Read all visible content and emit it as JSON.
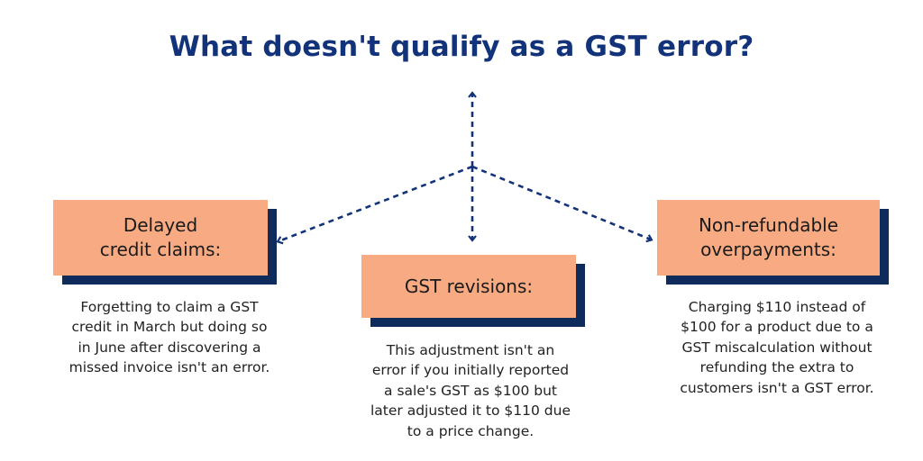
{
  "title": "What doesn't qualify as a GST error?",
  "colors": {
    "title": "#12337a",
    "card": "#f8ab82",
    "card_shadow": "#0f2b5c",
    "arrow": "#12337a"
  },
  "items": [
    {
      "heading": "Delayed\ncredit claims:",
      "description": "Forgetting to claim a GST\ncredit in March but doing so\nin June after discovering a\nmissed invoice isn't an error."
    },
    {
      "heading": "GST revisions:",
      "description": "This adjustment isn't an\nerror if you initially reported\na sale's GST as $100 but\nlater adjusted it to $110 due\nto a price change."
    },
    {
      "heading": "Non-refundable\noverpayments:",
      "description": "Charging $110 instead of\n$100 for a product due to a\nGST miscalculation without\nrefunding the extra to\ncustomers isn't a GST error."
    }
  ]
}
